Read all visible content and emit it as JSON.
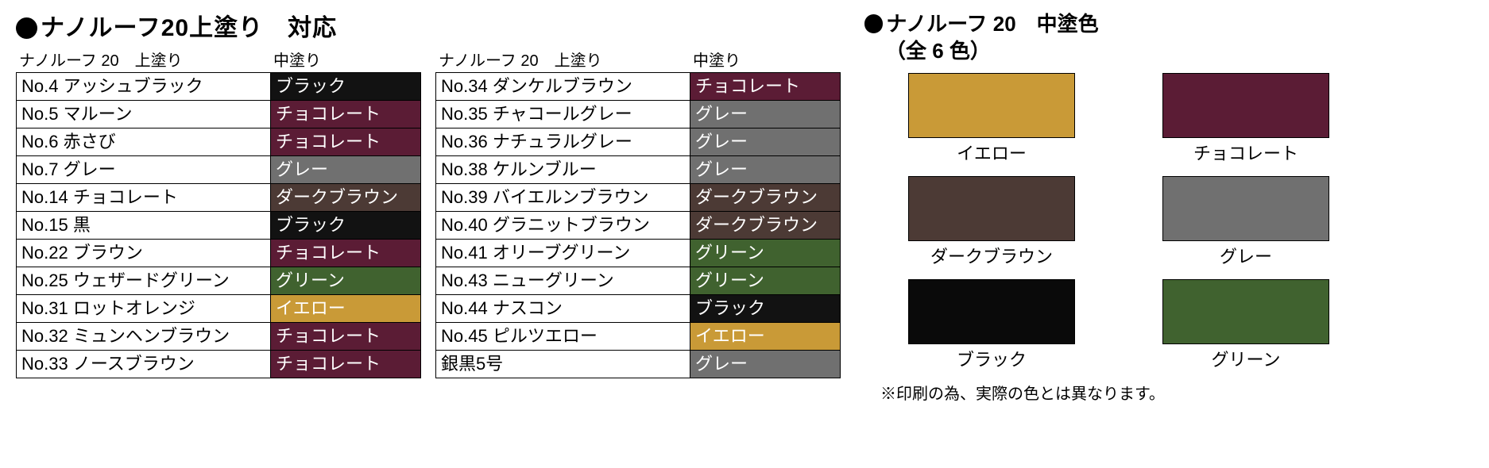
{
  "title_main": "ナノルーフ20上塗り　対応",
  "tables": {
    "header_left": "ナノルーフ 20　上塗り",
    "header_right": "中塗り",
    "columns": [
      [
        {
          "name": "No.4 アッシュブラック",
          "mid": "ブラック",
          "bg": "#121212",
          "fg": "#ffffff"
        },
        {
          "name": "No.5 マルーン",
          "mid": "チョコレート",
          "bg": "#5b1c35",
          "fg": "#ffffff"
        },
        {
          "name": "No.6 赤さび",
          "mid": "チョコレート",
          "bg": "#5b1c35",
          "fg": "#ffffff"
        },
        {
          "name": "No.7 グレー",
          "mid": "グレー",
          "bg": "#707070",
          "fg": "#ffffff"
        },
        {
          "name": "No.14 チョコレート",
          "mid": "ダークブラウン",
          "bg": "#4c3a35",
          "fg": "#ffffff"
        },
        {
          "name": "No.15 黒",
          "mid": "ブラック",
          "bg": "#121212",
          "fg": "#ffffff"
        },
        {
          "name": "No.22 ブラウン",
          "mid": "チョコレート",
          "bg": "#5b1c35",
          "fg": "#ffffff"
        },
        {
          "name": "No.25 ウェザードグリーン",
          "mid": "グリーン",
          "bg": "#40622f",
          "fg": "#ffffff"
        },
        {
          "name": "No.31 ロットオレンジ",
          "mid": "イエロー",
          "bg": "#c99a37",
          "fg": "#ffffff"
        },
        {
          "name": "No.32 ミュンヘンブラウン",
          "mid": "チョコレート",
          "bg": "#5b1c35",
          "fg": "#ffffff"
        },
        {
          "name": "No.33 ノースブラウン",
          "mid": "チョコレート",
          "bg": "#5b1c35",
          "fg": "#ffffff"
        }
      ],
      [
        {
          "name": "No.34 ダンケルブラウン",
          "mid": "チョコレート",
          "bg": "#5b1c35",
          "fg": "#ffffff"
        },
        {
          "name": "No.35 チャコールグレー",
          "mid": "グレー",
          "bg": "#707070",
          "fg": "#ffffff"
        },
        {
          "name": "No.36 ナチュラルグレー",
          "mid": "グレー",
          "bg": "#707070",
          "fg": "#ffffff"
        },
        {
          "name": "No.38 ケルンブルー",
          "mid": "グレー",
          "bg": "#707070",
          "fg": "#ffffff"
        },
        {
          "name": "No.39 バイエルンブラウン",
          "mid": "ダークブラウン",
          "bg": "#4c3a35",
          "fg": "#ffffff"
        },
        {
          "name": "No.40 グラニットブラウン",
          "mid": "ダークブラウン",
          "bg": "#4c3a35",
          "fg": "#ffffff"
        },
        {
          "name": "No.41 オリーブグリーン",
          "mid": "グリーン",
          "bg": "#40622f",
          "fg": "#ffffff"
        },
        {
          "name": "No.43 ニューグリーン",
          "mid": "グリーン",
          "bg": "#40622f",
          "fg": "#ffffff"
        },
        {
          "name": "No.44 ナスコン",
          "mid": "ブラック",
          "bg": "#121212",
          "fg": "#ffffff"
        },
        {
          "name": "No.45 ピルツエロー",
          "mid": "イエロー",
          "bg": "#c99a37",
          "fg": "#ffffff"
        },
        {
          "name": "銀黒5号",
          "mid": "グレー",
          "bg": "#707070",
          "fg": "#ffffff"
        }
      ]
    ]
  },
  "right": {
    "title": "ナノルーフ 20　中塗色",
    "subtitle": "（全 6 色）",
    "swatches": [
      {
        "label": "イエロー",
        "bg": "#c99a37"
      },
      {
        "label": "チョコレート",
        "bg": "#5b1c35"
      },
      {
        "label": "ダークブラウン",
        "bg": "#4c3a35"
      },
      {
        "label": "グレー",
        "bg": "#707070"
      },
      {
        "label": "ブラック",
        "bg": "#0a0a0a"
      },
      {
        "label": "グリーン",
        "bg": "#40622f"
      }
    ],
    "disclaimer": "※印刷の為、実際の色とは異なります。"
  }
}
